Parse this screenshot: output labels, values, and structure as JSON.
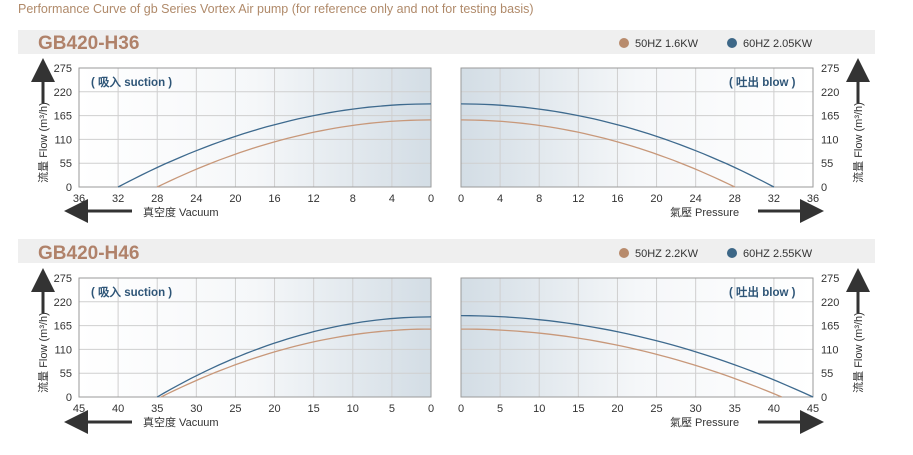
{
  "page": {
    "title": "Performance Curve of gb Series Vortex Air pump (for reference only and not for testing basis)"
  },
  "colors": {
    "curve_50hz": "#c8987a",
    "curve_60hz": "#3e6a8e",
    "legend_50hz": "#b88b6c",
    "legend_60hz": "#3d6787",
    "band": "#efefef",
    "grid": "#cfcfcf"
  },
  "chart_data": [
    {
      "type": "line",
      "model": "GB420-H36",
      "legend": [
        {
          "name": "50HZ  1.6KW",
          "color_key": "curve_50hz"
        },
        {
          "name": "60HZ  2.05KW",
          "color_key": "curve_60hz"
        }
      ],
      "ylabel": "流量 Flow (m³/h)",
      "ylim": [
        0,
        275
      ],
      "yticks": [
        "275",
        "220",
        "165",
        "110",
        "55",
        "0"
      ],
      "suction": {
        "label": "( 吸入 suction )",
        "xlabel": "真空度  Vacuum",
        "xlim": [
          0,
          36
        ],
        "xticks": [
          "36",
          "32",
          "28",
          "24",
          "20",
          "16",
          "12",
          "8",
          "4",
          "0"
        ],
        "series": [
          {
            "name": "50HZ  1.6KW",
            "x_max": 28,
            "y_max": 155
          },
          {
            "name": "60HZ  2.05KW",
            "x_max": 32,
            "y_max": 192
          }
        ]
      },
      "blow": {
        "label": "( 吐出 blow )",
        "xlabel": "氣壓  Pressure",
        "xlim": [
          0,
          36
        ],
        "xticks": [
          "0",
          "4",
          "8",
          "12",
          "16",
          "20",
          "24",
          "28",
          "32",
          "36"
        ],
        "series": [
          {
            "name": "50HZ  1.6KW",
            "x_max": 28,
            "y_max": 155
          },
          {
            "name": "60HZ  2.05KW",
            "x_max": 32,
            "y_max": 192
          }
        ]
      }
    },
    {
      "type": "line",
      "model": "GB420-H46",
      "legend": [
        {
          "name": "50HZ  2.2KW",
          "color_key": "curve_50hz"
        },
        {
          "name": "60HZ  2.55KW",
          "color_key": "curve_60hz"
        }
      ],
      "ylabel": "流量 Flow (m³/h)",
      "ylim": [
        0,
        275
      ],
      "yticks": [
        "275",
        "220",
        "165",
        "110",
        "55",
        "0"
      ],
      "suction": {
        "label": "( 吸入 suction )",
        "xlabel": "真空度  Vacuum",
        "xlim": [
          0,
          45
        ],
        "xticks": [
          "45",
          "40",
          "35",
          "30",
          "25",
          "20",
          "15",
          "10",
          "5",
          "0"
        ],
        "series": [
          {
            "name": "50HZ  2.2KW",
            "x_max": 34.5,
            "y_max": 157
          },
          {
            "name": "60HZ  2.55KW",
            "x_max": 35,
            "y_max": 185
          }
        ]
      },
      "blow": {
        "label": "( 吐出 blow )",
        "xlabel": "氣壓  Pressure",
        "xlim": [
          0,
          45
        ],
        "xticks": [
          "0",
          "5",
          "10",
          "15",
          "20",
          "25",
          "30",
          "35",
          "40",
          "45"
        ],
        "series": [
          {
            "name": "50HZ  2.2KW",
            "x_max": 41,
            "y_max": 157
          },
          {
            "name": "60HZ  2.55KW",
            "x_max": 45,
            "y_max": 188
          }
        ]
      }
    }
  ]
}
